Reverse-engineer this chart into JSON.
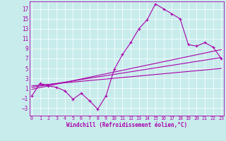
{
  "xlabel": "Windchill (Refroidissement éolien,°C)",
  "bg_color": "#c8ecec",
  "line_color": "#aa00aa",
  "x_ticks": [
    0,
    1,
    2,
    3,
    4,
    5,
    6,
    7,
    8,
    9,
    10,
    11,
    12,
    13,
    14,
    15,
    16,
    17,
    18,
    19,
    20,
    21,
    22,
    23
  ],
  "y_ticks": [
    -3,
    -1,
    1,
    3,
    5,
    7,
    9,
    11,
    13,
    15,
    17
  ],
  "ylim": [
    -4.5,
    18.5
  ],
  "xlim": [
    -0.3,
    23.3
  ],
  "line1_x": [
    0,
    1,
    2,
    3,
    4,
    5,
    6,
    7,
    8,
    9,
    10,
    11,
    12,
    13,
    14,
    15,
    16,
    17,
    18,
    19,
    20,
    21,
    22,
    23
  ],
  "line1_y": [
    -0.5,
    2.0,
    1.5,
    1.2,
    0.5,
    -1.2,
    0.0,
    -1.5,
    -3.2,
    -0.5,
    4.8,
    7.8,
    10.2,
    13.0,
    14.8,
    18.0,
    17.0,
    16.0,
    15.0,
    9.8,
    9.5,
    10.2,
    9.3,
    7.0
  ],
  "line2_x": [
    0,
    23
  ],
  "line2_y": [
    0.8,
    8.8
  ],
  "line3_x": [
    0,
    23
  ],
  "line3_y": [
    1.2,
    7.2
  ],
  "line4_x": [
    0,
    23
  ],
  "line4_y": [
    1.5,
    5.0
  ]
}
